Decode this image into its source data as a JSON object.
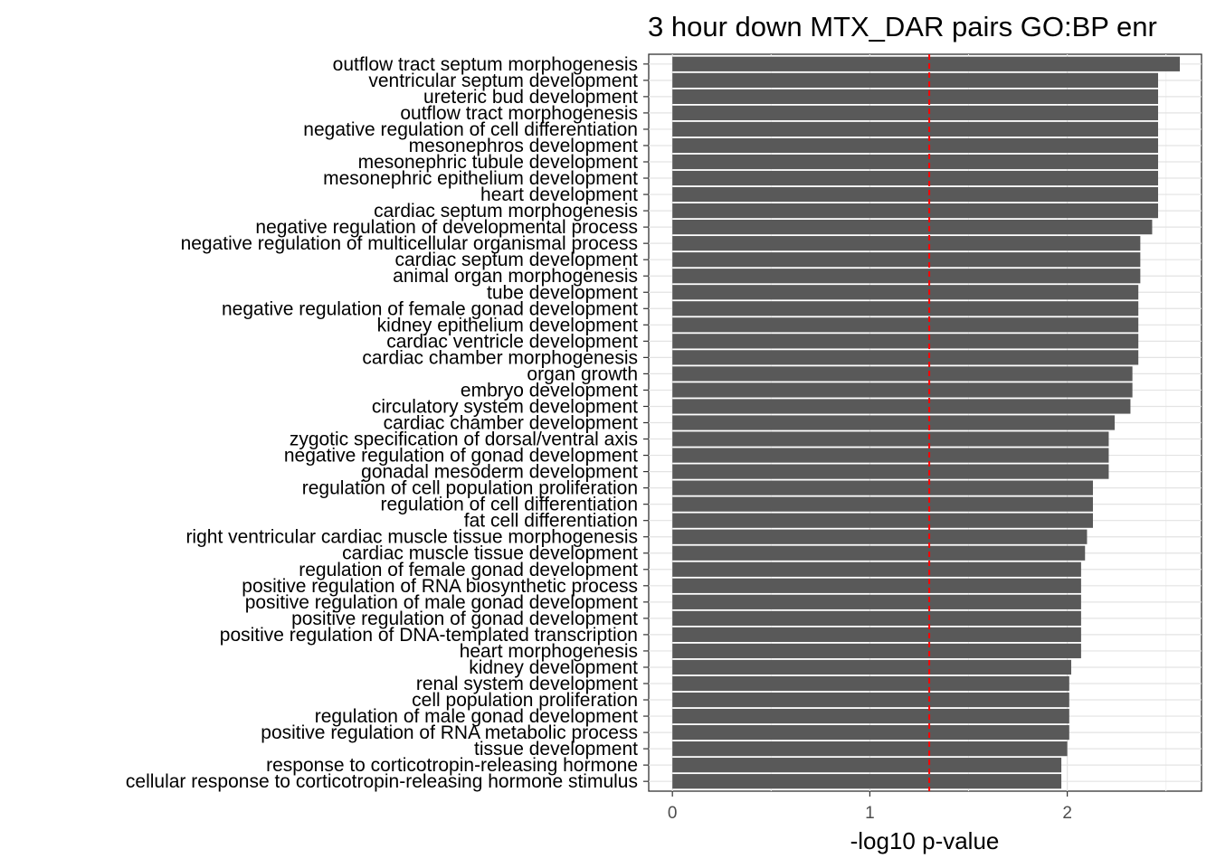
{
  "chart_data": {
    "type": "bar",
    "orientation": "horizontal",
    "title": "3 hour down MTX_DAR pairs GO:BP enr",
    "xlabel": "-log10 p-value",
    "ylabel": "",
    "xlim": [
      -0.12,
      2.68
    ],
    "xticks": [
      0,
      1,
      2
    ],
    "grid": true,
    "threshold_line": {
      "value": 1.301,
      "color": "#ff0000",
      "style": "dashed"
    },
    "bar_color": "#595959",
    "categories": [
      "outflow tract septum morphogenesis",
      "ventricular septum development",
      "ureteric bud development",
      "outflow tract morphogenesis",
      "negative regulation of cell differentiation",
      "mesonephros development",
      "mesonephric tubule development",
      "mesonephric epithelium development",
      "heart development",
      "cardiac septum morphogenesis",
      "negative regulation of developmental process",
      "negative regulation of multicellular organismal process",
      "cardiac septum development",
      "animal organ morphogenesis",
      "tube development",
      "negative regulation of female gonad development",
      "kidney epithelium development",
      "cardiac ventricle development",
      "cardiac chamber morphogenesis",
      "organ growth",
      "embryo development",
      "circulatory system development",
      "cardiac chamber development",
      "zygotic specification of dorsal/ventral axis",
      "negative regulation of gonad development",
      "gonadal mesoderm development",
      "regulation of cell population proliferation",
      "regulation of cell differentiation",
      "fat cell differentiation",
      "right ventricular cardiac muscle tissue morphogenesis",
      "cardiac muscle tissue development",
      "regulation of female gonad development",
      "positive regulation of RNA biosynthetic process",
      "positive regulation of male gonad development",
      "positive regulation of gonad development",
      "positive regulation of DNA-templated transcription",
      "heart morphogenesis",
      "kidney development",
      "renal system development",
      "cell population proliferation",
      "regulation of male gonad development",
      "positive regulation of RNA metabolic process",
      "tissue development",
      "response to corticotropin-releasing hormone",
      "cellular response to corticotropin-releasing hormone stimulus"
    ],
    "values": [
      2.57,
      2.46,
      2.46,
      2.46,
      2.46,
      2.46,
      2.46,
      2.46,
      2.46,
      2.46,
      2.43,
      2.37,
      2.37,
      2.37,
      2.36,
      2.36,
      2.36,
      2.36,
      2.36,
      2.33,
      2.33,
      2.32,
      2.24,
      2.21,
      2.21,
      2.21,
      2.13,
      2.13,
      2.13,
      2.1,
      2.09,
      2.07,
      2.07,
      2.07,
      2.07,
      2.07,
      2.07,
      2.02,
      2.01,
      2.01,
      2.01,
      2.01,
      2.0,
      1.97,
      1.97
    ]
  }
}
